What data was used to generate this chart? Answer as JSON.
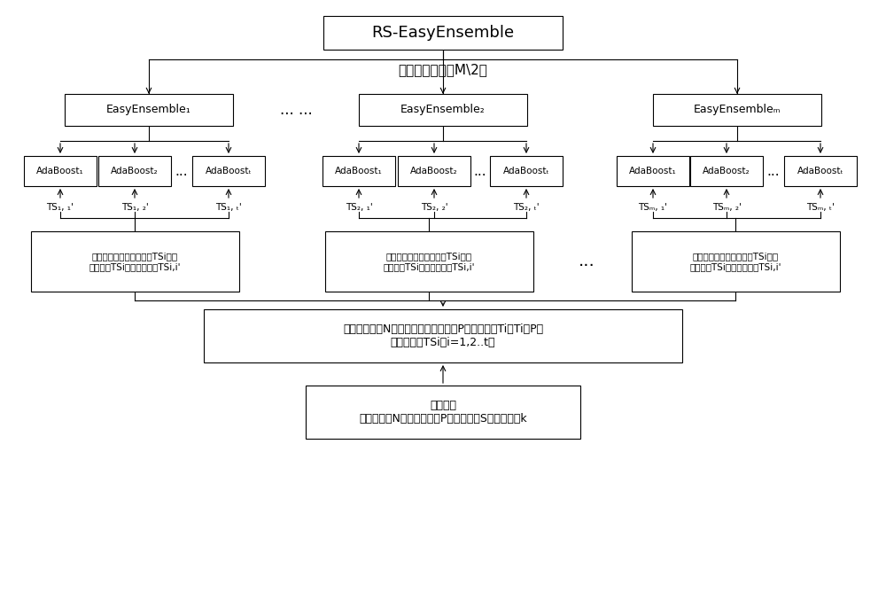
{
  "bg_color": "#ffffff",
  "text_color": "#000000",
  "title": "RS-EasyEnsemble",
  "label_select": "选择其中最好的M\\2个",
  "easy_labels": [
    "EasyEnsemble₁",
    "EasyEnsemble₂",
    "EasyEnsembleₘ"
  ],
  "dots_ee": "... ...",
  "ada_labels_1": [
    "AdaBoost₁",
    "AdaBoost₂",
    "AdaBoostₜ"
  ],
  "ada_labels_2": [
    "AdaBoost₁",
    "AdaBoost₂",
    "AdaBoostₜ"
  ],
  "ada_labels_M": [
    "AdaBoost₁",
    "AdaBoost₂",
    "AdaBoostₜ"
  ],
  "ada_dots": "...",
  "ts_labels_1": [
    "TS₁, ₁'",
    "TS₁, ₂'",
    "TS₁, ₜ'"
  ],
  "ts_labels_2": [
    "TS₂, ₁'",
    "TS₂, ₂'",
    "TS₂, ₜ'"
  ],
  "ts_labels_M": [
    "TSₘ, ₁'",
    "TSₘ, ₂'",
    "TSₘ, ₜ'"
  ],
  "subspace_text": "随机采样创建特征子空间TSi，映\n射到集合TSi上，得到集合TSi,i'",
  "dots_sub": "...",
  "partition_text": "将多数类集合N分成个大小等于少数类P的互斥子集Ti，Ti和P取\n并得到集合TSi（i=1,2..t）",
  "training_text": "训练集：\n多数类集合N，少数类集合P，特征空间S，特征数目k"
}
